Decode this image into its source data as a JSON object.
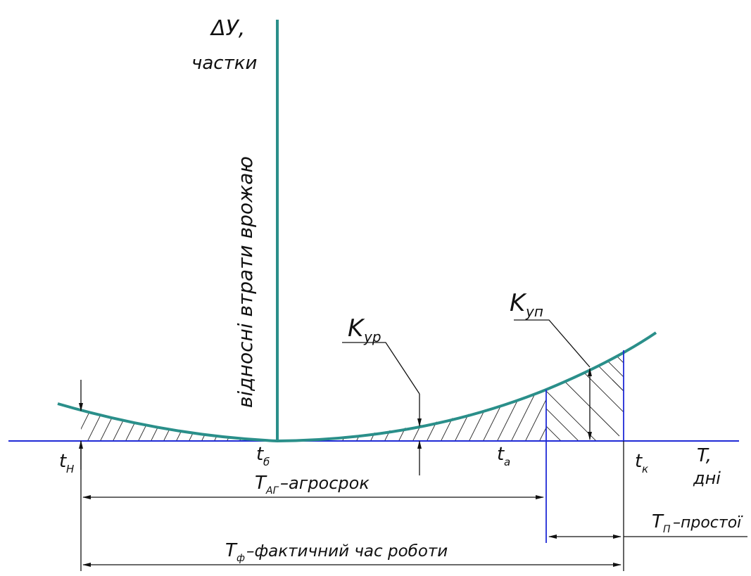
{
  "y_axis": {
    "symbol": "ΔУ,",
    "unit": "частки",
    "description": "відносні втрати врожаю"
  },
  "x_axis": {
    "symbol": "T,",
    "unit": "дні"
  },
  "time_marks": {
    "t_start": "t",
    "t_start_sub": "Н",
    "t_optimal": "t",
    "t_optimal_sub": "б",
    "t_a": "t",
    "t_a_sub": "а",
    "t_end": "t",
    "t_end_sub": "к"
  },
  "coefficients": {
    "k_early": "K",
    "k_early_sub": "ур",
    "k_late": "K",
    "k_late_sub": "уп"
  },
  "intervals": {
    "agro_period": "T",
    "agro_period_sub": "АГ",
    "agro_period_text": " –агросрок",
    "downtime": "T",
    "downtime_sub": "П",
    "downtime_text": " –простої",
    "actual_time": "T",
    "actual_time_sub": "ф",
    "actual_time_text": " –фактичний час роботи"
  },
  "colors": {
    "curve": "#2a8f8a",
    "axis": "#1f2ad6",
    "ink": "#111111"
  }
}
